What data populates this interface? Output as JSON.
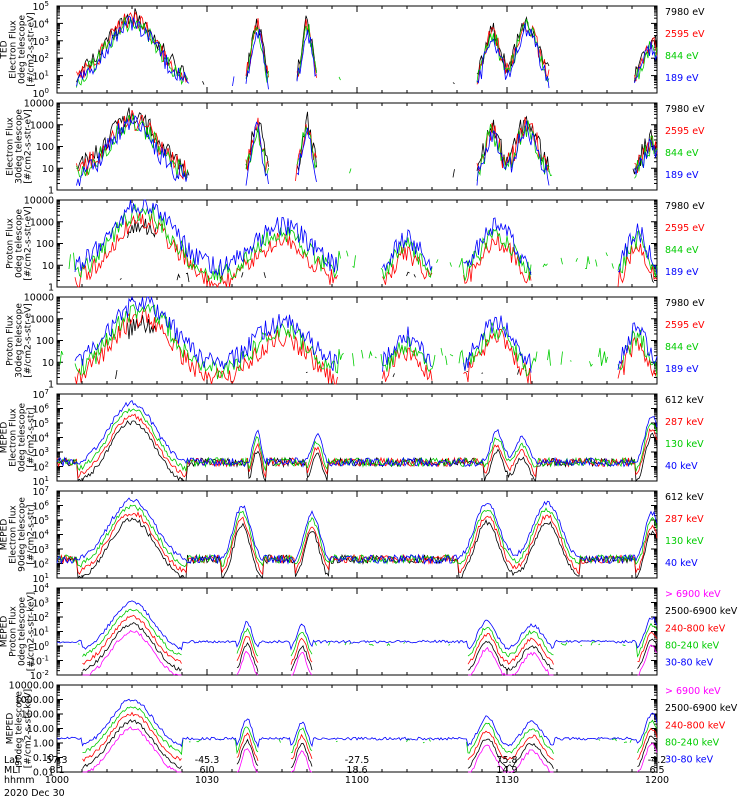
{
  "chart_data": {
    "type": "line",
    "date_label": "2020 Dec 30",
    "x_rows": [
      {
        "label": "Lat",
        "values": [
          "57.3",
          "-45.3",
          "-27.5",
          "75.8",
          "-4.2"
        ]
      },
      {
        "label": "MLT",
        "values": [
          "8.1",
          "6.0",
          "18.6",
          "14.9",
          "6.5"
        ]
      },
      {
        "label": "hhmm",
        "values": [
          "1000",
          "1030",
          "1100",
          "1130",
          "1200"
        ]
      }
    ],
    "x_range_minutes": [
      0,
      120
    ],
    "panels": [
      {
        "ylabel": [
          "TED",
          "Electron Flux",
          "0deg telescope",
          "[#/cm2-s-str-eV]"
        ],
        "scale": "log",
        "ylim_exp": [
          0,
          5
        ],
        "tick_format": "pow",
        "channels": [
          {
            "label": "7980 eV",
            "color": "#000000"
          },
          {
            "label": "2595 eV",
            "color": "#ff0000"
          },
          {
            "label": "844 eV",
            "color": "#00cc00"
          },
          {
            "label": "189 eV",
            "color": "#0000ff"
          }
        ]
      },
      {
        "ylabel": [
          "Electron Flux",
          "30deg telescope",
          "[#/cm2-s-str-eV]"
        ],
        "scale": "log",
        "ylim_exp": [
          0,
          4
        ],
        "tick_format": "int",
        "channels": [
          {
            "label": "7980 eV",
            "color": "#000000"
          },
          {
            "label": "2595 eV",
            "color": "#ff0000"
          },
          {
            "label": "844 eV",
            "color": "#00cc00"
          },
          {
            "label": "189 eV",
            "color": "#0000ff"
          }
        ]
      },
      {
        "ylabel": [
          "Proton Flux",
          "0deg telescope",
          "[#/cm2-s-str-eV]"
        ],
        "scale": "log",
        "ylim_exp": [
          0,
          4
        ],
        "tick_format": "int",
        "channels": [
          {
            "label": "7980 eV",
            "color": "#000000"
          },
          {
            "label": "2595 eV",
            "color": "#ff0000"
          },
          {
            "label": "844 eV",
            "color": "#00cc00"
          },
          {
            "label": "189 eV",
            "color": "#0000ff"
          }
        ]
      },
      {
        "ylabel": [
          "Proton Flux",
          "30deg telescope",
          "[#/cm2-s-str-eV]"
        ],
        "scale": "log",
        "ylim_exp": [
          0,
          4
        ],
        "tick_format": "int",
        "channels": [
          {
            "label": "7980 eV",
            "color": "#000000"
          },
          {
            "label": "2595 eV",
            "color": "#ff0000"
          },
          {
            "label": "844 eV",
            "color": "#00cc00"
          },
          {
            "label": "189 eV",
            "color": "#0000ff"
          }
        ]
      },
      {
        "ylabel": [
          "MEPED",
          "Electron Flux",
          "0deg telescope",
          "[#/cm2-s-str]"
        ],
        "scale": "log",
        "ylim_exp": [
          1,
          7
        ],
        "tick_format": "pow2",
        "channels": [
          {
            "label": "612 keV",
            "color": "#000000"
          },
          {
            "label": "287 keV",
            "color": "#ff0000"
          },
          {
            "label": "130 keV",
            "color": "#00cc00"
          },
          {
            "label": "40 keV",
            "color": "#0000ff"
          }
        ]
      },
      {
        "ylabel": [
          "MEPED",
          "Electron Flux",
          "90deg telescope",
          "[#/cm2-s-str]"
        ],
        "scale": "log",
        "ylim_exp": [
          1,
          7
        ],
        "tick_format": "pow2",
        "channels": [
          {
            "label": "612 keV",
            "color": "#000000"
          },
          {
            "label": "287 keV",
            "color": "#ff0000"
          },
          {
            "label": "130 keV",
            "color": "#00cc00"
          },
          {
            "label": "40 keV",
            "color": "#0000ff"
          }
        ]
      },
      {
        "ylabel": [
          "MEPED",
          "Proton Flux",
          "0deg telescope",
          "[#/cm2-s-str-keV]"
        ],
        "scale": "log",
        "ylim_exp": [
          -2,
          4
        ],
        "tick_format": "pow",
        "channels": [
          {
            "label": "> 6900 keV",
            "color": "#ff00ff"
          },
          {
            "label": "2500-6900 keV",
            "color": "#000000"
          },
          {
            "label": "240-800 keV",
            "color": "#ff0000"
          },
          {
            "label": "80-240 keV",
            "color": "#00cc00"
          },
          {
            "label": "30-80 keV",
            "color": "#0000ff"
          }
        ]
      },
      {
        "ylabel": [
          "MEPED",
          "90deg telescope",
          "[#/cm2-s-str-keV]"
        ],
        "scale": "log",
        "ylim_exp": [
          -2,
          4
        ],
        "tick_format": "dec",
        "channels": [
          {
            "label": "> 6900 keV",
            "color": "#ff00ff"
          },
          {
            "label": "2500-6900 keV",
            "color": "#000000"
          },
          {
            "label": "240-800 keV",
            "color": "#ff0000"
          },
          {
            "label": "80-240 keV",
            "color": "#00cc00"
          },
          {
            "label": "30-80 keV",
            "color": "#0000ff"
          }
        ]
      }
    ]
  }
}
